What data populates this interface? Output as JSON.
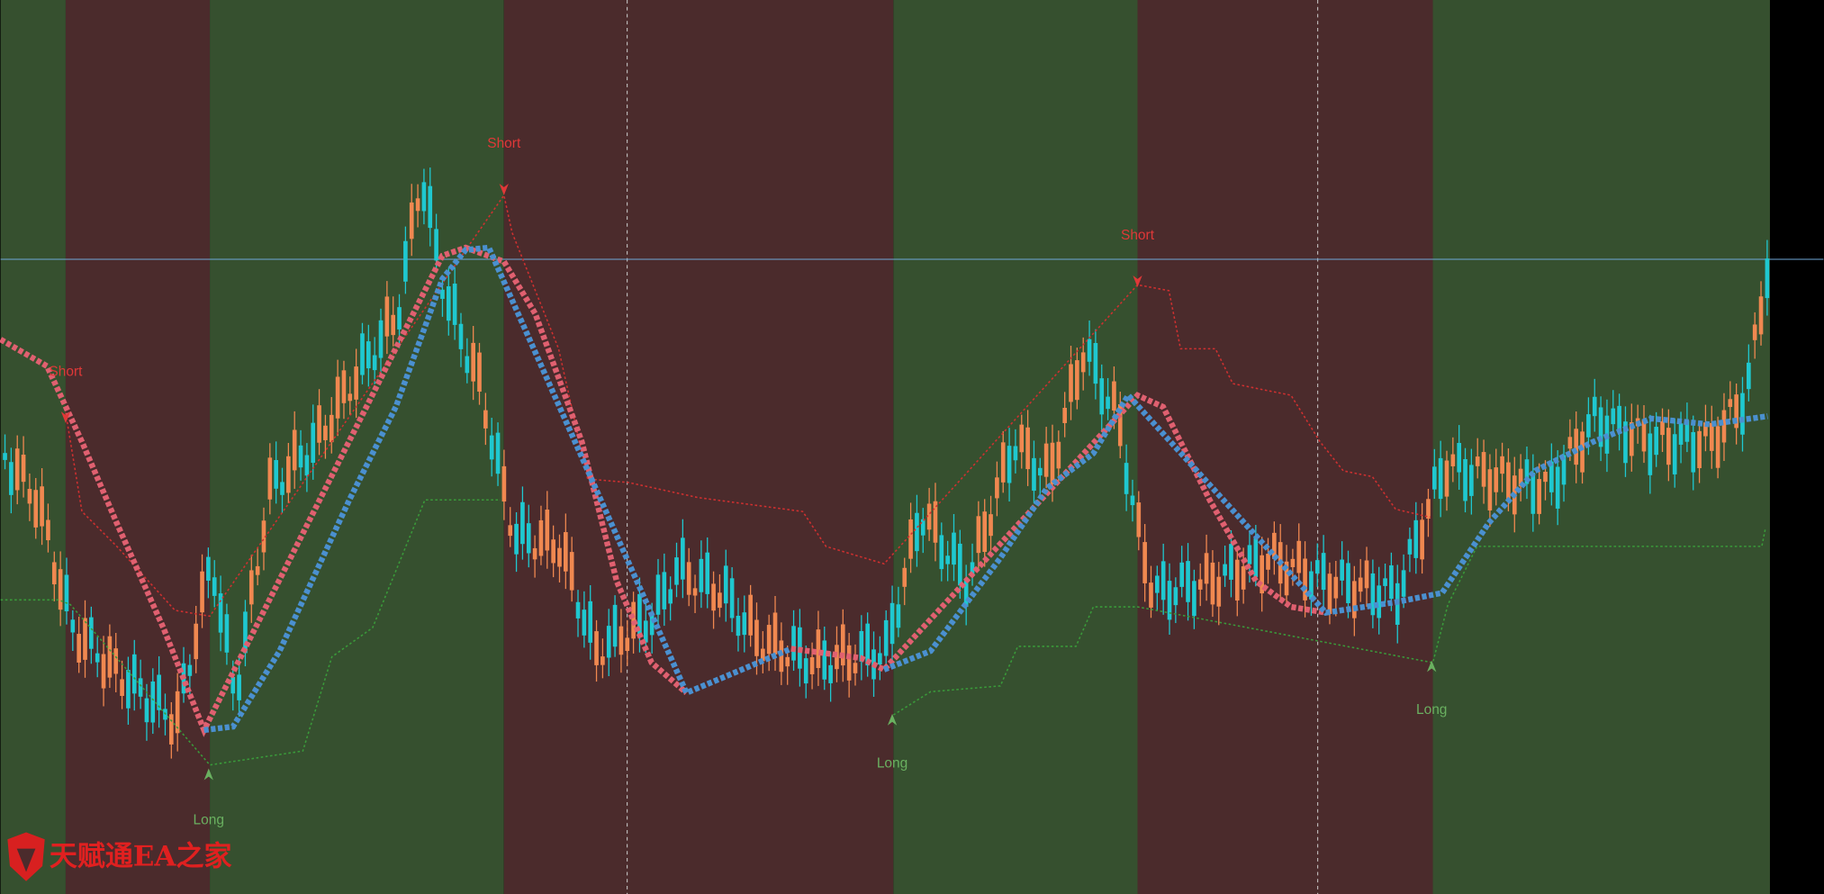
{
  "signals": [
    {
      "label": "Short"
    },
    {
      "label": "Short"
    },
    {
      "label": "Short"
    },
    {
      "label": "Long"
    },
    {
      "label": "Long"
    },
    {
      "label": "Long"
    }
  ],
  "watermark": "天赋通EA之家"
}
